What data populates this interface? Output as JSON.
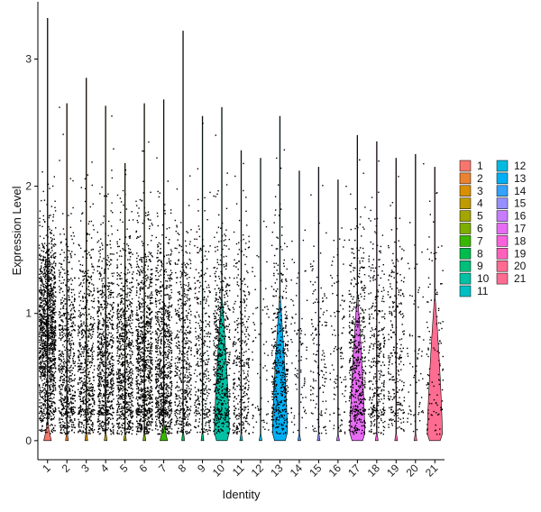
{
  "chart_data": {
    "type": "violin",
    "xlabel": "Identity",
    "ylabel": "Expression Level",
    "categories": [
      "1",
      "2",
      "3",
      "4",
      "5",
      "6",
      "7",
      "8",
      "9",
      "10",
      "11",
      "12",
      "13",
      "14",
      "15",
      "16",
      "17",
      "18",
      "19",
      "20",
      "21"
    ],
    "ylim": [
      -0.15,
      3.45
    ],
    "yticks": [
      0,
      1,
      2,
      3
    ],
    "grid": false,
    "legend_placement": "right",
    "max_values": [
      3.32,
      2.65,
      2.85,
      2.63,
      2.18,
      2.65,
      2.68,
      3.22,
      2.55,
      2.62,
      2.28,
      2.22,
      2.55,
      2.12,
      2.15,
      2.05,
      2.4,
      2.35,
      2.22,
      2.25,
      2.15
    ],
    "violin_width": [
      0.1,
      0.02,
      0.02,
      0.02,
      0.02,
      0.02,
      0.1,
      0.02,
      0.02,
      0.22,
      0.02,
      0.02,
      0.22,
      0.02,
      0.02,
      0.02,
      0.22,
      0.02,
      0.02,
      0.02,
      0.22
    ],
    "point_density": [
      1.0,
      0.45,
      0.45,
      0.55,
      0.55,
      0.65,
      0.6,
      0.35,
      0.25,
      0.4,
      0.25,
      0.05,
      0.3,
      0.06,
      0.1,
      0.08,
      0.35,
      0.25,
      0.18,
      0.05,
      0.08
    ],
    "colors": [
      "#F8766D",
      "#EA8331",
      "#D89000",
      "#C09B00",
      "#A3A500",
      "#7CAE00",
      "#39B600",
      "#00BB4E",
      "#00BF7D",
      "#00C1A3",
      "#00BFC4",
      "#00BAE0",
      "#00B0F6",
      "#35A2FF",
      "#9590FF",
      "#C77CFF",
      "#E76BF3",
      "#FA62DB",
      "#FF62BC",
      "#FF6C91",
      "#FF6C91"
    ]
  },
  "legend": {
    "items": [
      "1",
      "2",
      "3",
      "4",
      "5",
      "6",
      "7",
      "8",
      "9",
      "10",
      "11",
      "12",
      "13",
      "14",
      "15",
      "16",
      "17",
      "18",
      "19",
      "20",
      "21"
    ]
  }
}
